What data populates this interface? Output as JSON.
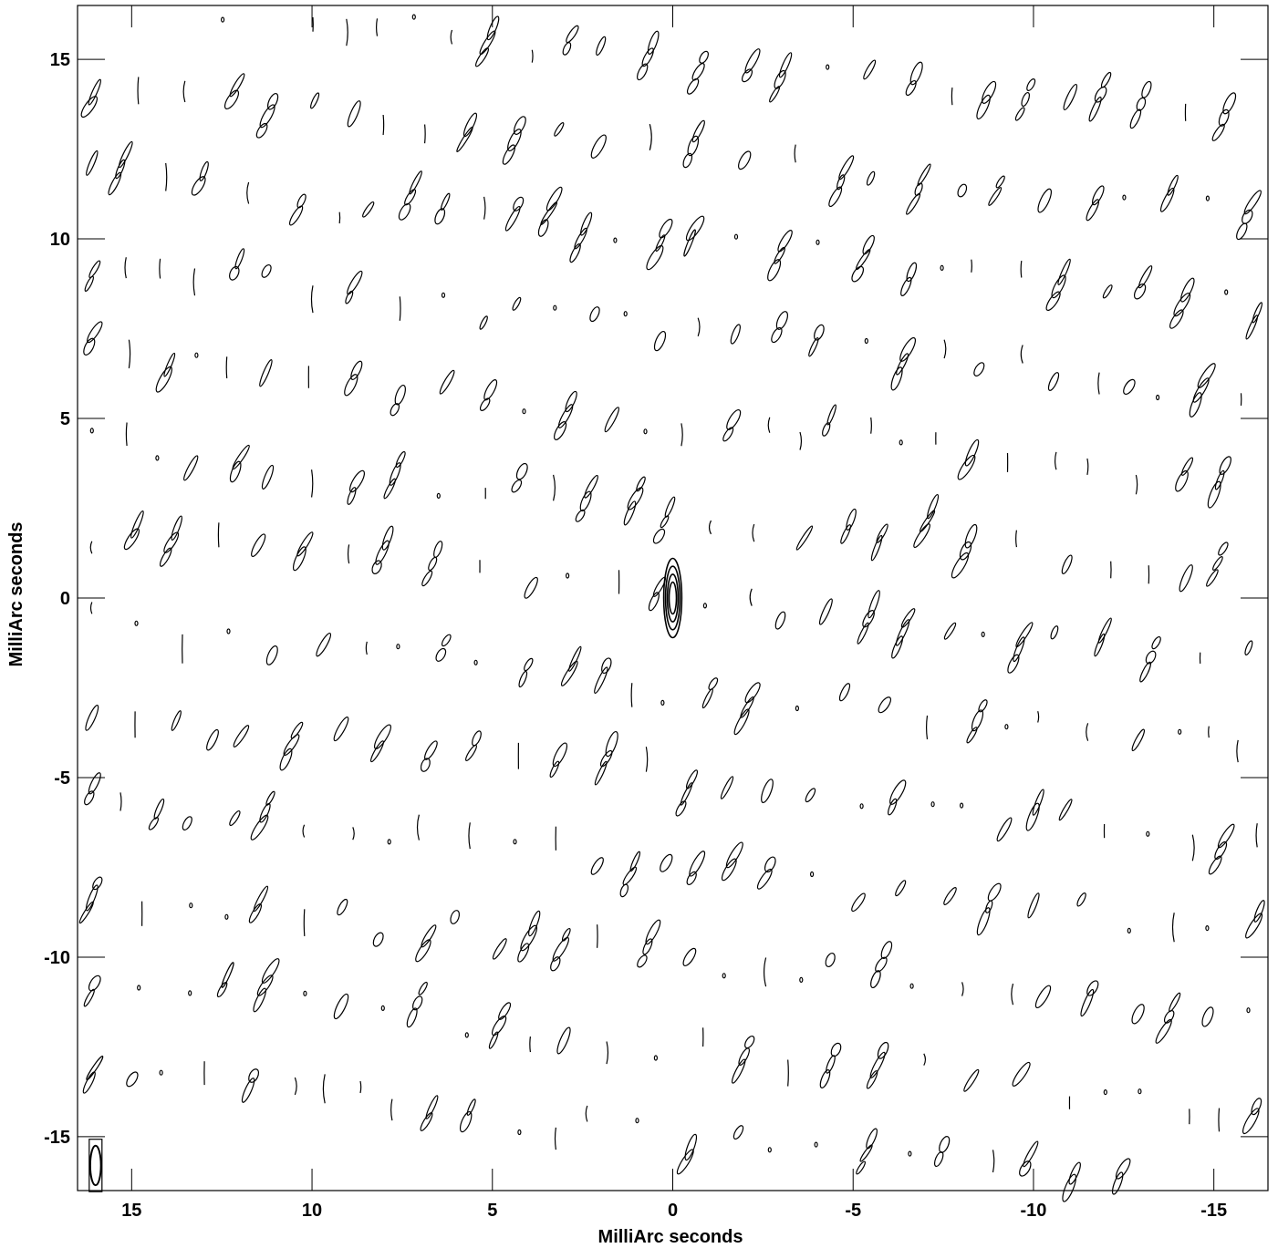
{
  "chart_data": {
    "type": "contour",
    "title": "",
    "xlabel": "MilliArc seconds",
    "ylabel": "MilliArc seconds",
    "xlim": [
      16.5,
      -16.5
    ],
    "ylim": [
      -16.5,
      16.5
    ],
    "x_ticks": [
      15,
      10,
      5,
      0,
      -5,
      -10,
      -15
    ],
    "y_ticks": [
      15,
      10,
      5,
      0,
      -5,
      -10,
      -15
    ],
    "grid": false,
    "central_source": {
      "x": 0,
      "y": 0,
      "levels": 4,
      "semi_major": 1.1,
      "semi_minor": 0.25
    },
    "sidelobe_pattern": {
      "rows_y_at_center": [
        15,
        12.5,
        10,
        7.5,
        5,
        2.5,
        0,
        -2.5,
        -5,
        -7.5,
        -10,
        -12.5,
        -15
      ],
      "row_slope": -0.32,
      "column_spacing": 1.3
    },
    "beam": {
      "x": 16.0,
      "y": -15.8,
      "major": 1.2,
      "minor": 0.25
    }
  }
}
